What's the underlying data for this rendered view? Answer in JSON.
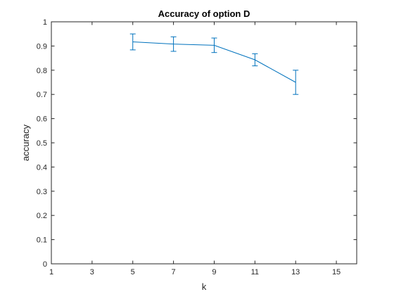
{
  "chart_data": {
    "type": "line",
    "title": "Accuracy of option D",
    "xlabel": "k",
    "ylabel": "accuracy",
    "xlim": [
      1,
      16
    ],
    "ylim": [
      0,
      1
    ],
    "x_ticks": [
      1,
      3,
      5,
      7,
      9,
      11,
      13,
      15
    ],
    "x_tick_labels": [
      "1",
      "3",
      "5",
      "7",
      "9",
      "11",
      "13",
      "15"
    ],
    "y_ticks": [
      0,
      0.1,
      0.2,
      0.3,
      0.4,
      0.5,
      0.6,
      0.7,
      0.8,
      0.9,
      1
    ],
    "y_tick_labels": [
      "0",
      "0.1",
      "0.2",
      "0.3",
      "0.4",
      "0.5",
      "0.6",
      "0.7",
      "0.8",
      "0.9",
      "1"
    ],
    "grid": false,
    "series": [
      {
        "x": [
          5,
          7,
          9,
          11,
          13
        ],
        "y": [
          0.917,
          0.908,
          0.903,
          0.843,
          0.75
        ],
        "error": [
          0.033,
          0.03,
          0.03,
          0.025,
          0.05
        ],
        "color": "#0072bd"
      }
    ]
  }
}
